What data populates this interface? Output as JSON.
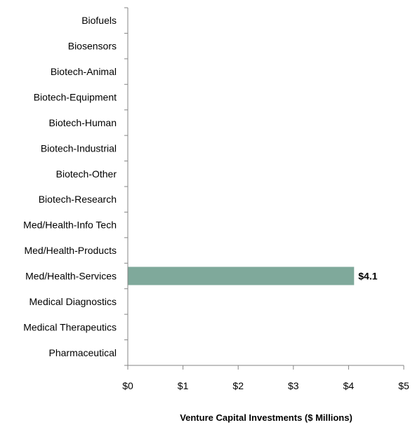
{
  "chart_data": {
    "type": "bar",
    "orientation": "horizontal",
    "categories": [
      "Biofuels",
      "Biosensors",
      "Biotech-Animal",
      "Biotech-Equipment",
      "Biotech-Human",
      "Biotech-Industrial",
      "Biotech-Other",
      "Biotech-Research",
      "Med/Health-Info Tech",
      "Med/Health-Products",
      "Med/Health-Services",
      "Medical Diagnostics",
      "Medical Therapeutics",
      "Pharmaceutical"
    ],
    "values": [
      0,
      0,
      0,
      0,
      0,
      0,
      0,
      0,
      0,
      0,
      4.1,
      0,
      0,
      0
    ],
    "data_labels": [
      "",
      "",
      "",
      "",
      "",
      "",
      "",
      "",
      "",
      "",
      "$4.1",
      "",
      "",
      ""
    ],
    "xlabel": "Venture Capital Investments ($ Millions)",
    "ylabel": "",
    "xlim": [
      0,
      5
    ],
    "xticks": [
      0,
      1,
      2,
      3,
      4,
      5
    ],
    "xtick_labels": [
      "$0",
      "$1",
      "$2",
      "$3",
      "$4",
      "$5"
    ],
    "grid": false,
    "bar_color": "#7fa99b",
    "axis_color": "#868686"
  }
}
